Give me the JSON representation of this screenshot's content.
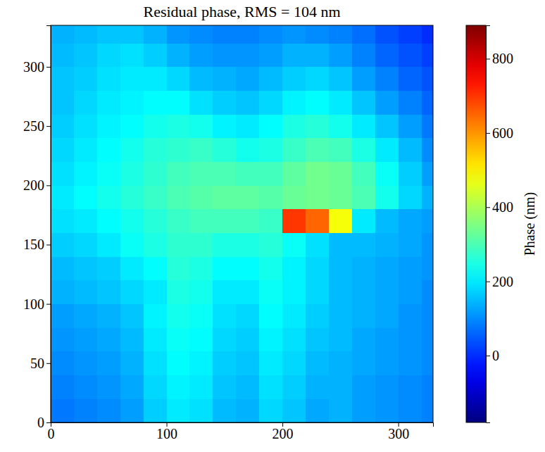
{
  "chart_data": {
    "type": "heatmap",
    "title": "Residual phase, RMS = 104 nm",
    "xlim": [
      0,
      330
    ],
    "ylim": [
      0,
      335
    ],
    "xticks": [
      0,
      100,
      200,
      300
    ],
    "yticks": [
      0,
      50,
      100,
      150,
      200,
      250,
      300
    ],
    "x_bins": [
      0,
      20,
      40,
      60,
      80,
      100,
      120,
      140,
      160,
      180,
      200,
      220,
      240,
      260,
      280,
      300,
      320,
      340
    ],
    "y_bins": [
      0,
      20,
      40,
      60,
      80,
      100,
      120,
      140,
      160,
      180,
      200,
      220,
      240,
      260,
      280,
      300,
      320,
      340
    ],
    "z": [
      [
        80,
        90,
        100,
        120,
        170,
        200,
        190,
        150,
        140,
        180,
        160,
        130,
        140,
        120,
        110,
        100,
        90
      ],
      [
        90,
        100,
        110,
        130,
        180,
        210,
        200,
        160,
        150,
        190,
        170,
        140,
        140,
        120,
        110,
        100,
        90
      ],
      [
        100,
        110,
        120,
        140,
        190,
        220,
        210,
        170,
        160,
        200,
        180,
        150,
        140,
        130,
        120,
        110,
        100
      ],
      [
        110,
        120,
        130,
        150,
        200,
        230,
        220,
        180,
        170,
        210,
        190,
        160,
        150,
        130,
        120,
        110,
        100
      ],
      [
        120,
        130,
        140,
        160,
        210,
        240,
        230,
        190,
        180,
        220,
        200,
        170,
        150,
        140,
        130,
        110,
        100
      ],
      [
        140,
        150,
        160,
        180,
        200,
        250,
        240,
        200,
        200,
        230,
        210,
        180,
        150,
        140,
        130,
        120,
        100
      ],
      [
        150,
        160,
        170,
        200,
        220,
        260,
        250,
        220,
        220,
        240,
        210,
        180,
        150,
        140,
        130,
        120,
        110
      ],
      [
        170,
        180,
        200,
        230,
        250,
        270,
        270,
        250,
        250,
        260,
        230,
        190,
        150,
        150,
        140,
        130,
        110
      ],
      [
        190,
        200,
        220,
        240,
        260,
        280,
        290,
        290,
        290,
        280,
        700,
        650,
        480,
        200,
        150,
        130,
        120
      ],
      [
        200,
        220,
        240,
        260,
        280,
        300,
        310,
        320,
        320,
        310,
        330,
        340,
        330,
        300,
        240,
        180,
        140
      ],
      [
        190,
        210,
        230,
        250,
        270,
        290,
        300,
        300,
        290,
        290,
        320,
        340,
        330,
        290,
        230,
        170,
        120
      ],
      [
        180,
        200,
        220,
        240,
        260,
        270,
        280,
        260,
        240,
        250,
        280,
        300,
        290,
        250,
        200,
        150,
        100
      ],
      [
        170,
        190,
        210,
        220,
        240,
        250,
        240,
        210,
        200,
        220,
        250,
        260,
        240,
        200,
        160,
        120,
        80
      ],
      [
        160,
        180,
        200,
        210,
        220,
        220,
        190,
        170,
        160,
        180,
        210,
        220,
        200,
        160,
        120,
        90,
        60
      ],
      [
        160,
        170,
        190,
        200,
        200,
        180,
        150,
        140,
        130,
        150,
        170,
        180,
        160,
        120,
        90,
        60,
        40
      ],
      [
        150,
        160,
        180,
        190,
        170,
        140,
        120,
        110,
        110,
        120,
        140,
        140,
        120,
        90,
        60,
        40,
        20
      ],
      [
        140,
        150,
        160,
        160,
        140,
        110,
        100,
        90,
        90,
        100,
        110,
        100,
        90,
        70,
        40,
        20,
        0
      ]
    ],
    "colorbar": {
      "label": "Phase (nm)",
      "range": [
        -180,
        890
      ],
      "ticks": [
        0,
        200,
        400,
        600,
        800
      ]
    }
  }
}
